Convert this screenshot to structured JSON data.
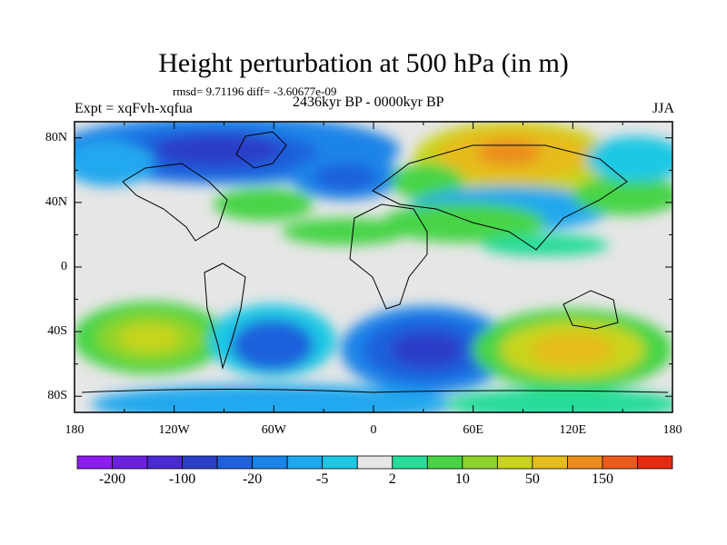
{
  "title": "Height perturbation at 500 hPa (in m)",
  "stats": "rmsd= 9.71196 diff= -3.60677e-09",
  "expt": "Expt = xqFvh-xqfua",
  "period": "2436kyr BP - 0000kyr BP",
  "season": "JJA",
  "y_ticks": [
    "80N",
    "40N",
    "0",
    "40S",
    "80S"
  ],
  "x_ticks": [
    "180",
    "120W",
    "60W",
    "0",
    "60E",
    "120E",
    "180"
  ],
  "colorbar": {
    "colors": [
      "#8c1cf0",
      "#6a22e0",
      "#4a2ad2",
      "#2c3ec8",
      "#1f60dc",
      "#1a84e8",
      "#20a8ee",
      "#1ec8e4",
      "#e6e6e6",
      "#28dc9a",
      "#46d446",
      "#8cd42c",
      "#c8d41e",
      "#e6bc1c",
      "#eb8c1c",
      "#ec5a1c",
      "#e62a12"
    ],
    "labels": [
      "-200",
      "-100",
      "-20",
      "-5",
      "2",
      "10",
      "50",
      "150"
    ]
  }
}
